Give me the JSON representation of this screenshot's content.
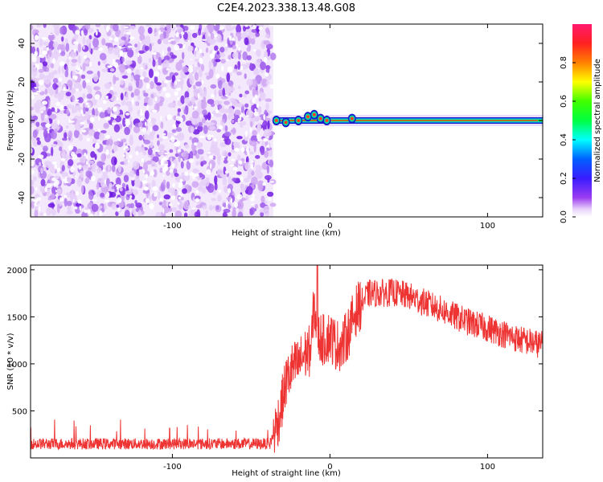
{
  "figure": {
    "title": "C2E4.2023.338.13.48.G08"
  },
  "chart_data": [
    {
      "type": "heatmap",
      "xlabel": "Height of straight line (km)",
      "ylabel": "Frequency (Hz)",
      "xlim": [
        -190,
        135
      ],
      "ylim": [
        -50,
        50
      ],
      "xticks": [
        -100,
        0,
        100
      ],
      "xtick_labels": [
        "-100",
        "0",
        "100"
      ],
      "yticks": [
        -40,
        -20,
        0,
        20,
        40
      ],
      "ytick_labels": [
        "-40",
        "-20",
        "0",
        "20",
        "40"
      ],
      "grid": false,
      "noise_region_x": [
        -190,
        -36
      ],
      "signal_region_x": [
        -36,
        135
      ],
      "signal_line_frequency": 0,
      "colorbar": {
        "label": "Normalized spectral amplitude",
        "range": [
          0,
          1
        ],
        "ticks": [
          0.0,
          0.2,
          0.4,
          0.6,
          0.8
        ],
        "tick_labels": [
          "0.0",
          "0.2",
          "0.4",
          "0.6",
          "0.8"
        ],
        "colormap": [
          "#ffffff",
          "#c58bf0",
          "#8a2be2",
          "#3030ff",
          "#00ffff",
          "#00ff00",
          "#ffff00",
          "#ff8000",
          "#ff2020",
          "#ff1a6e"
        ]
      }
    },
    {
      "type": "line",
      "xlabel": "Height of straight line (km)",
      "ylabel": "SNR (10 * v/v)",
      "xlim": [
        -190,
        135
      ],
      "ylim": [
        0,
        2050
      ],
      "xticks": [
        -100,
        0,
        100
      ],
      "xtick_labels": [
        "-100",
        "0",
        "100"
      ],
      "yticks": [
        500,
        1000,
        1500,
        2000
      ],
      "ytick_labels": [
        "500",
        "1000",
        "1500",
        "2000"
      ],
      "grid": false,
      "series": [
        {
          "color": "#ee3333",
          "x": [
            -190,
            -170,
            -150,
            -130,
            -110,
            -90,
            -70,
            -50,
            -38,
            -32,
            -28,
            -24,
            -20,
            -16,
            -12,
            -10,
            -8,
            -4,
            0,
            4,
            8,
            12,
            16,
            20,
            25,
            30,
            40,
            50,
            60,
            70,
            80,
            90,
            100,
            110,
            120,
            130,
            135
          ],
          "y": [
            150,
            150,
            150,
            150,
            150,
            150,
            150,
            150,
            150,
            450,
            800,
            950,
            1000,
            1100,
            1150,
            1650,
            1300,
            1250,
            1300,
            1200,
            1200,
            1350,
            1550,
            1650,
            1750,
            1750,
            1760,
            1720,
            1650,
            1580,
            1500,
            1430,
            1380,
            1320,
            1260,
            1220,
            1200
          ]
        }
      ]
    }
  ]
}
